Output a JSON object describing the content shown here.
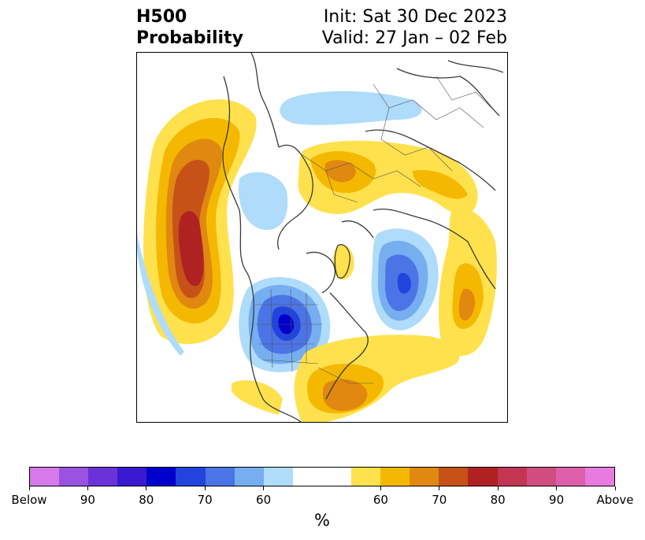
{
  "header": {
    "title_line1": "H500",
    "title_line2": "Probability",
    "init_text": "Init: Sat 30 Dec 2023",
    "valid_text": "Valid: 27 Jan – 02 Feb"
  },
  "map": {
    "projection": "north polar stereographic",
    "field": "500 hPa height anomaly probability"
  },
  "colorbar": {
    "unit_label": "%",
    "tick_labels": [
      "Below",
      "90",
      "80",
      "70",
      "60",
      "60",
      "70",
      "80",
      "90",
      "Above"
    ],
    "colors": [
      "#d57ae8",
      "#9a52e0",
      "#6a32d8",
      "#3a1ad0",
      "#0000cc",
      "#2244dd",
      "#4b74e6",
      "#76aef0",
      "#aedcfa",
      "#ffffff",
      "#ffffff",
      "#ffe14d",
      "#f5b800",
      "#e0880f",
      "#c65218",
      "#b02222",
      "#c43552",
      "#d04e7f",
      "#de60aa",
      "#e87ae0"
    ]
  }
}
